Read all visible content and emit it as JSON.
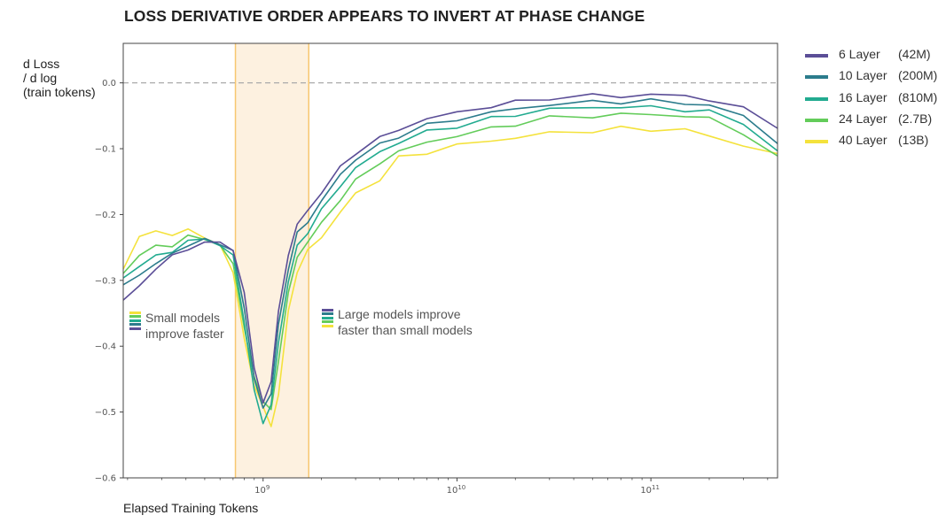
{
  "chart_data": {
    "type": "line",
    "title": "LOSS DERIVATIVE ORDER APPEARS TO INVERT AT PHASE CHANGE",
    "ylabel_lines": [
      "d Loss",
      "/ d log",
      "(train tokens)"
    ],
    "xlabel": "Elapsed Training Tokens",
    "x_scale": "log",
    "xlim": [
      190000000,
      450000000000
    ],
    "ylim": [
      -0.6,
      0.06
    ],
    "yticks": [
      "0.0",
      "−0.1",
      "−0.2",
      "−0.3",
      "−0.4",
      "−0.5",
      "−0.6"
    ],
    "ytick_values": [
      0.0,
      -0.1,
      -0.2,
      -0.3,
      -0.4,
      -0.5,
      -0.6
    ],
    "xticks": [
      {
        "value": 1000000000,
        "base": "10",
        "exp": "9"
      },
      {
        "value": 10000000000,
        "base": "10",
        "exp": "10"
      },
      {
        "value": 100000000000,
        "base": "10",
        "exp": "11"
      }
    ],
    "grid": false,
    "reference_line": {
      "y": 0.0,
      "style": "dashed"
    },
    "phase_change_band": {
      "x_start": 720000000,
      "x_end": 1720000000,
      "fill": "#fdf1e0",
      "edge": "#f7c770"
    },
    "x": [
      190000000,
      230000000,
      280000000,
      340000000,
      410000000,
      500000000,
      600000000,
      700000000,
      800000000,
      900000000,
      1000000000,
      1100000000,
      1200000000,
      1350000000,
      1500000000,
      1700000000,
      2000000000,
      2500000000,
      3000000000,
      4000000000,
      5000000000,
      7000000000,
      10000000000,
      15000000000,
      20000000000,
      30000000000,
      50000000000,
      70000000000,
      100000000000,
      150000000000,
      200000000000,
      300000000000,
      450000000000
    ],
    "series": [
      {
        "name": "6 Layer",
        "params": "(42M)",
        "color": "#5b4e97",
        "values": [
          -0.33,
          -0.31,
          -0.28,
          -0.265,
          -0.25,
          -0.245,
          -0.24,
          -0.255,
          -0.32,
          -0.43,
          -0.49,
          -0.45,
          -0.35,
          -0.26,
          -0.215,
          -0.195,
          -0.165,
          -0.13,
          -0.105,
          -0.085,
          -0.07,
          -0.055,
          -0.045,
          -0.035,
          -0.03,
          -0.022,
          -0.02,
          -0.02,
          -0.018,
          -0.02,
          -0.025,
          -0.04,
          -0.065
        ]
      },
      {
        "name": "10 Layer",
        "params": "(200M)",
        "color": "#2c7c8c",
        "values": [
          -0.31,
          -0.29,
          -0.275,
          -0.26,
          -0.245,
          -0.24,
          -0.242,
          -0.258,
          -0.34,
          -0.45,
          -0.495,
          -0.47,
          -0.37,
          -0.28,
          -0.23,
          -0.21,
          -0.18,
          -0.14,
          -0.115,
          -0.095,
          -0.08,
          -0.065,
          -0.055,
          -0.045,
          -0.04,
          -0.032,
          -0.03,
          -0.028,
          -0.028,
          -0.03,
          -0.035,
          -0.05,
          -0.09
        ]
      },
      {
        "name": "16 Layer",
        "params": "(810M)",
        "color": "#22ab90",
        "values": [
          -0.3,
          -0.275,
          -0.265,
          -0.255,
          -0.24,
          -0.238,
          -0.245,
          -0.265,
          -0.36,
          -0.47,
          -0.515,
          -0.49,
          -0.395,
          -0.3,
          -0.25,
          -0.225,
          -0.195,
          -0.155,
          -0.13,
          -0.105,
          -0.09,
          -0.075,
          -0.065,
          -0.055,
          -0.048,
          -0.04,
          -0.038,
          -0.036,
          -0.038,
          -0.04,
          -0.045,
          -0.06,
          -0.105
        ]
      },
      {
        "name": "24 Layer",
        "params": "(2.7B)",
        "color": "#63cc5a",
        "values": [
          -0.29,
          -0.26,
          -0.25,
          -0.245,
          -0.235,
          -0.235,
          -0.248,
          -0.275,
          -0.37,
          -0.45,
          -0.48,
          -0.5,
          -0.42,
          -0.32,
          -0.265,
          -0.24,
          -0.215,
          -0.175,
          -0.15,
          -0.12,
          -0.105,
          -0.09,
          -0.08,
          -0.07,
          -0.062,
          -0.054,
          -0.05,
          -0.048,
          -0.048,
          -0.05,
          -0.055,
          -0.075,
          -0.115
        ]
      },
      {
        "name": "40 Layer",
        "params": "(13B)",
        "color": "#f4e23c",
        "values": [
          -0.28,
          -0.235,
          -0.225,
          -0.23,
          -0.225,
          -0.232,
          -0.25,
          -0.285,
          -0.39,
          -0.46,
          -0.49,
          -0.525,
          -0.47,
          -0.35,
          -0.285,
          -0.255,
          -0.235,
          -0.195,
          -0.17,
          -0.145,
          -0.115,
          -0.105,
          -0.095,
          -0.088,
          -0.083,
          -0.077,
          -0.072,
          -0.07,
          -0.07,
          -0.072,
          -0.08,
          -0.095,
          -0.11
        ]
      }
    ],
    "annotations": [
      {
        "lines": [
          "Small models",
          "improve faster"
        ],
        "swatch_order": [
          "#f4e23c",
          "#63cc5a",
          "#22ab90",
          "#2c7c8c",
          "#5b4e97"
        ]
      },
      {
        "lines": [
          "Large models improve",
          "faster than small models"
        ],
        "swatch_order": [
          "#5b4e97",
          "#2c7c8c",
          "#22ab90",
          "#63cc5a",
          "#f4e23c"
        ]
      }
    ],
    "legend_position": "right"
  }
}
